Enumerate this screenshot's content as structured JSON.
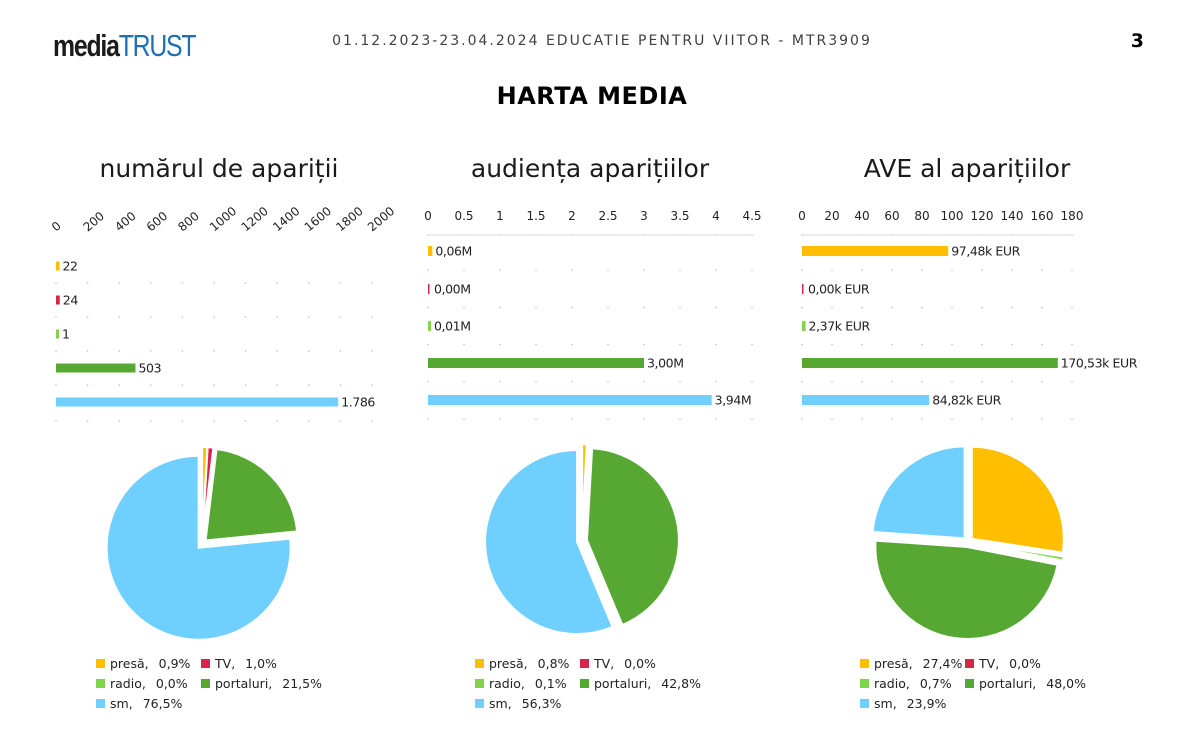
{
  "header": {
    "logo_part1": "media",
    "logo_part2": "TRUST",
    "subtitle": "01.12.2023-23.04.2024 EDUCATIE PENTRU VIITOR - MTR3909",
    "page_number": "3",
    "title": "HARTA MEDIA"
  },
  "colors": {
    "presa": "#ffbf00",
    "tv": "#d9254a",
    "radio": "#7fd44a",
    "portaluri": "#56a832",
    "sm": "#6fcfff"
  },
  "chart_data": [
    {
      "type": "bar",
      "orientation": "horizontal",
      "title": "numărul de apariții",
      "categories": [
        "presă",
        "TV",
        "radio",
        "portaluri",
        "sm"
      ],
      "values": [
        22,
        24,
        1,
        503,
        1786
      ],
      "value_labels": [
        "22",
        "24",
        "1",
        "503",
        "1.786"
      ],
      "xlim": [
        0,
        2000
      ],
      "ticks": [
        0,
        200,
        400,
        600,
        800,
        1000,
        1200,
        1400,
        1600,
        1800,
        2000
      ],
      "tick_labels": [
        "0",
        "200",
        "400",
        "600",
        "800",
        "1000",
        "1200",
        "1400",
        "1600",
        "1800",
        "2000"
      ],
      "tick_rotation": "rotated",
      "grid": "dotted"
    },
    {
      "type": "bar",
      "orientation": "horizontal",
      "title": "audiența aparițiilor",
      "categories": [
        "presă",
        "TV",
        "radio",
        "portaluri",
        "sm"
      ],
      "values": [
        0.06,
        0.0,
        0.01,
        3.0,
        3.94
      ],
      "value_labels": [
        "0,06M",
        "0,00M",
        "0,01M",
        "3,00M",
        "3,94M"
      ],
      "xlim": [
        0,
        4.5
      ],
      "ticks": [
        0,
        0.5,
        1,
        1.5,
        2,
        2.5,
        3,
        3.5,
        4,
        4.5
      ],
      "tick_labels": [
        "0",
        "0.5",
        "1",
        "1.5",
        "2",
        "2.5",
        "3",
        "3.5",
        "4",
        "4.5"
      ],
      "tick_rotation": "none",
      "grid": "dotted"
    },
    {
      "type": "bar",
      "orientation": "horizontal",
      "title": "AVE al aparițiilor",
      "categories": [
        "presă",
        "TV",
        "radio",
        "portaluri",
        "sm"
      ],
      "values": [
        97.48,
        0.0,
        2.37,
        170.53,
        84.82
      ],
      "value_labels": [
        "97,48k EUR",
        "0,00k EUR",
        "2,37k EUR",
        "170,53k EUR",
        "84,82k EUR"
      ],
      "xlim": [
        0,
        180
      ],
      "ticks": [
        0,
        20,
        40,
        60,
        80,
        100,
        120,
        140,
        160,
        180
      ],
      "tick_labels": [
        "0",
        "20",
        "40",
        "60",
        "80",
        "100",
        "120",
        "140",
        "160",
        "180"
      ],
      "tick_rotation": "none",
      "grid": "dotted"
    },
    {
      "type": "pie",
      "categories": [
        "presă",
        "TV",
        "radio",
        "portaluri",
        "sm"
      ],
      "values": [
        0.9,
        1.0,
        0.0,
        21.5,
        76.5
      ],
      "value_labels": [
        "0,9%",
        "1,0%",
        "0,0%",
        "21,5%",
        "76,5%"
      ],
      "exploded": true
    },
    {
      "type": "pie",
      "categories": [
        "presă",
        "TV",
        "radio",
        "portaluri",
        "sm"
      ],
      "values": [
        0.8,
        0.0,
        0.1,
        42.8,
        56.3
      ],
      "value_labels": [
        "0,8%",
        "0,0%",
        "0,1%",
        "42,8%",
        "56,3%"
      ],
      "exploded": true
    },
    {
      "type": "pie",
      "categories": [
        "presă",
        "TV",
        "radio",
        "portaluri",
        "sm"
      ],
      "values": [
        27.4,
        0.0,
        0.7,
        48.0,
        23.9
      ],
      "value_labels": [
        "27,4%",
        "0,0%",
        "0,7%",
        "48,0%",
        "23,9%"
      ],
      "exploded": true
    }
  ]
}
